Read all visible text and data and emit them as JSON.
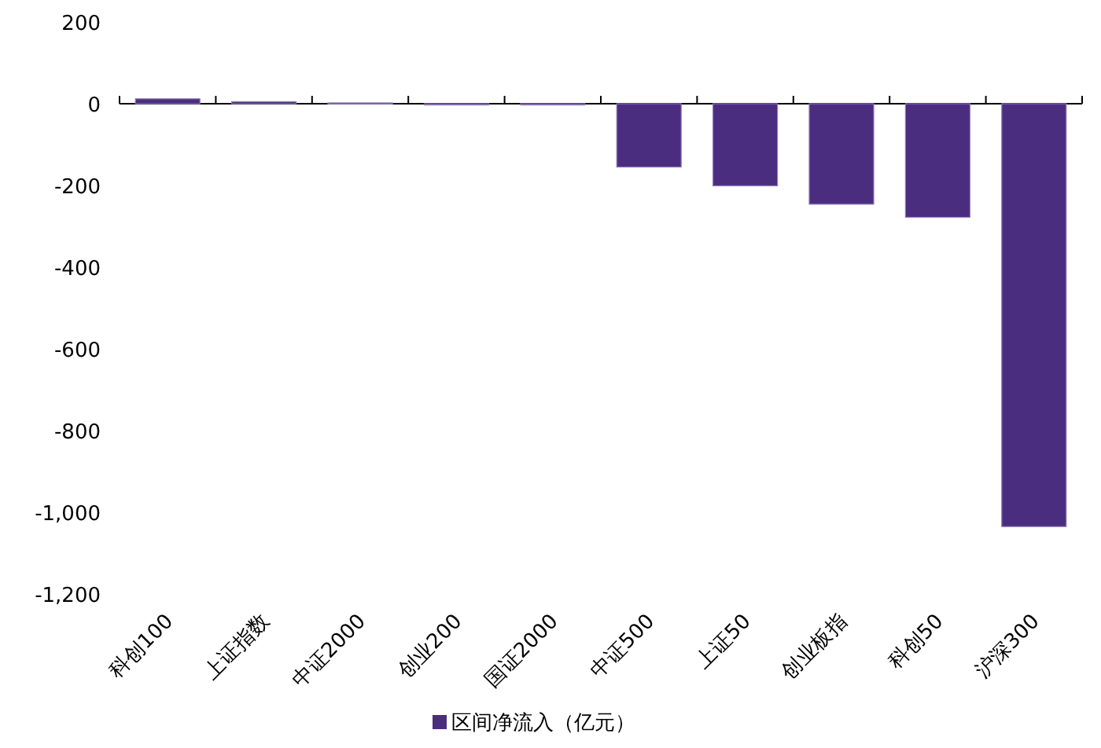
{
  "chart_data": {
    "type": "bar",
    "categories": [
      "科创100",
      "上证指数",
      "中证2000",
      "创业200",
      "国证2000",
      "中证500",
      "上证50",
      "创业板指",
      "科创50",
      "沪深300"
    ],
    "series": [
      {
        "name": "区间净流入（亿元）",
        "color": "#4b2d80",
        "values": [
          12,
          5,
          2,
          -2,
          -2,
          -155,
          -201,
          -246,
          -278,
          -1035
        ]
      }
    ],
    "ylim": [
      -1200,
      200
    ],
    "yticks": [
      200,
      0,
      {
        "value": -200,
        "label": "-200"
      },
      {
        "value": -400,
        "label": "-400"
      },
      {
        "value": -600,
        "label": "-600"
      },
      {
        "value": -800,
        "label": "-800"
      },
      {
        "value": -1000,
        "label": "-1,000"
      },
      {
        "value": -1200,
        "label": "-1,200"
      }
    ],
    "legend": "bottom"
  }
}
